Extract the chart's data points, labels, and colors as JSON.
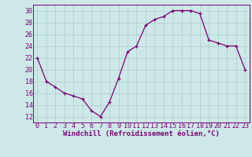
{
  "x": [
    0,
    1,
    2,
    3,
    4,
    5,
    6,
    7,
    8,
    9,
    10,
    11,
    12,
    13,
    14,
    15,
    16,
    17,
    18,
    19,
    20,
    21,
    22,
    23
  ],
  "y": [
    22,
    18,
    17,
    16,
    15.5,
    15,
    13,
    12,
    14.5,
    18.5,
    23,
    24,
    27.5,
    28.5,
    29,
    30,
    30,
    30,
    29.5,
    25,
    24.5,
    24,
    24,
    20
  ],
  "line_color": "#7B0077",
  "marker": "+",
  "xlabel": "Windchill (Refroidissement éolien,°C)",
  "xlim": [
    -0.5,
    23.5
  ],
  "ylim": [
    11,
    31
  ],
  "yticks": [
    12,
    14,
    16,
    18,
    20,
    22,
    24,
    26,
    28,
    30
  ],
  "xticks": [
    0,
    1,
    2,
    3,
    4,
    5,
    6,
    7,
    8,
    9,
    10,
    11,
    12,
    13,
    14,
    15,
    16,
    17,
    18,
    19,
    20,
    21,
    22,
    23
  ],
  "bg_color": "#cde8e8",
  "grid_color": "#aacccc",
  "xlabel_fontsize": 6.5,
  "tick_fontsize": 6
}
